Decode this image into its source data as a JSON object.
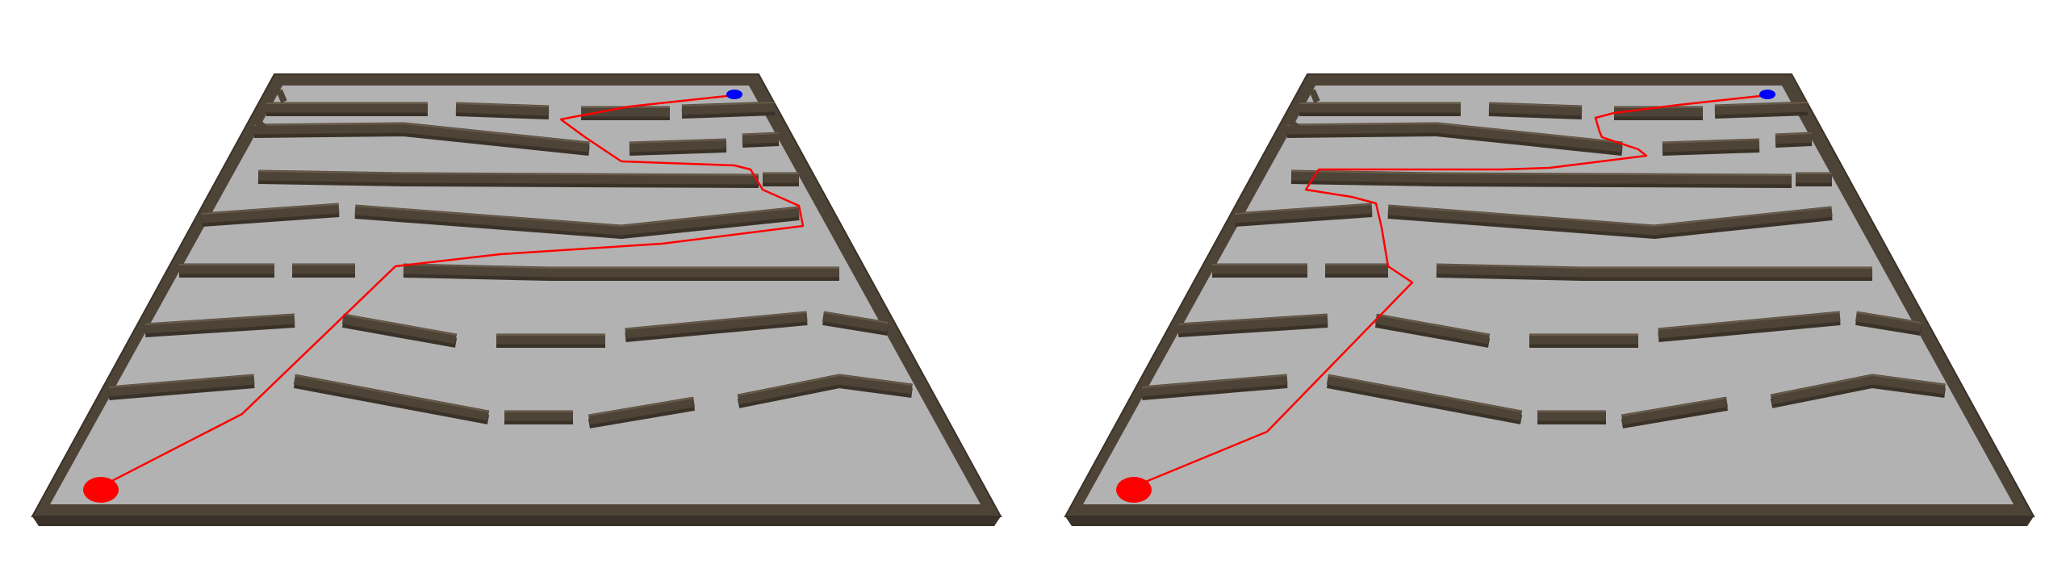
{
  "colors": {
    "background": "#ffffff",
    "floor": "#b2b2b2",
    "wall_top": "#4d4336",
    "wall_side": "#3a3228",
    "wall_light": "#7a6a58",
    "path": "#ff0000",
    "start_marker": "#ff0000",
    "goal_marker": "#0000ff"
  },
  "panels": [
    {
      "name": "left-maze",
      "route": "route-a"
    },
    {
      "name": "right-maze",
      "route": "route-b"
    }
  ],
  "markers": {
    "start": {
      "color": "red",
      "shape": "ellipse"
    },
    "goal": {
      "color": "blue",
      "shape": "ellipse"
    }
  },
  "icons": [
    "start-marker-icon",
    "goal-marker-icon"
  ]
}
